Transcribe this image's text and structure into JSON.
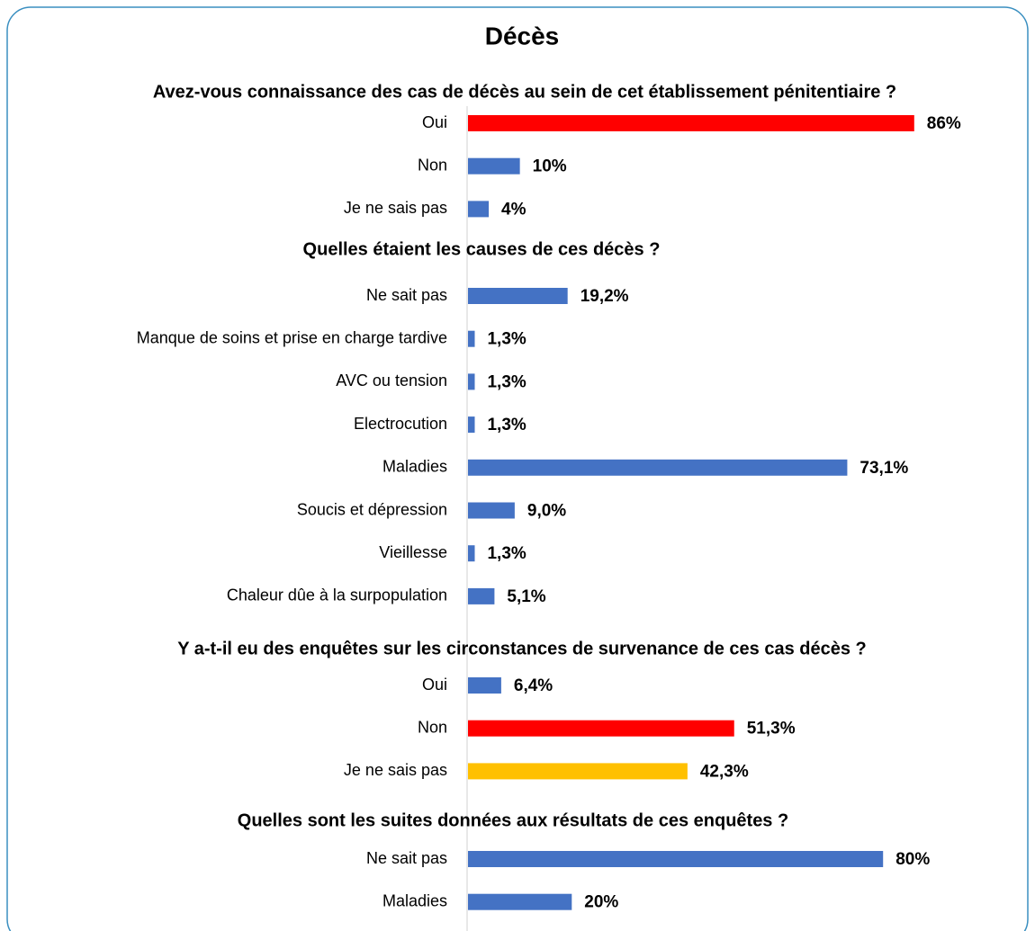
{
  "title": "Décès",
  "chart_data": [
    {
      "type": "bar",
      "title": "Avez-vous connaissance des cas de décès au sein de cet établissement pénitentiaire ?",
      "categories": [
        "Oui",
        "Non",
        "Je ne sais pas"
      ],
      "values": [
        86,
        10,
        4
      ],
      "value_labels": [
        "86%",
        "10%",
        "4%"
      ],
      "colors": [
        "#ff0000",
        "#4472c4",
        "#4472c4"
      ]
    },
    {
      "type": "bar",
      "title": "Quelles étaient les causes de ces décès ?",
      "categories": [
        "Ne sait pas",
        "Manque de soins et prise en charge tardive",
        "AVC ou tension",
        "Electrocution",
        "Maladies",
        "Soucis et dépression",
        "Vieillesse",
        "Chaleur dûe à la surpopulation"
      ],
      "values": [
        19.2,
        1.3,
        1.3,
        1.3,
        73.1,
        9.0,
        1.3,
        5.1
      ],
      "value_labels": [
        "19,2%",
        "1,3%",
        "1,3%",
        "1,3%",
        "73,1%",
        "9,0%",
        "1,3%",
        "5,1%"
      ],
      "colors": [
        "#4472c4",
        "#4472c4",
        "#4472c4",
        "#4472c4",
        "#4472c4",
        "#4472c4",
        "#4472c4",
        "#4472c4"
      ]
    },
    {
      "type": "bar",
      "title": "Y a-t-il eu  des enquêtes sur les circonstances de survenance de ces cas décès ?",
      "categories": [
        "Oui",
        "Non",
        "Je ne sais pas"
      ],
      "values": [
        6.4,
        51.3,
        42.3
      ],
      "value_labels": [
        "6,4%",
        "51,3%",
        "42,3%"
      ],
      "colors": [
        "#4472c4",
        "#ff0000",
        "#ffc000"
      ]
    },
    {
      "type": "bar",
      "title": "Quelles sont les suites données aux résultats de ces enquêtes ?",
      "categories": [
        "Ne sait pas",
        "Maladies"
      ],
      "values": [
        80,
        20
      ],
      "value_labels": [
        "80%",
        "20%"
      ],
      "colors": [
        "#4472c4",
        "#4472c4"
      ]
    }
  ]
}
